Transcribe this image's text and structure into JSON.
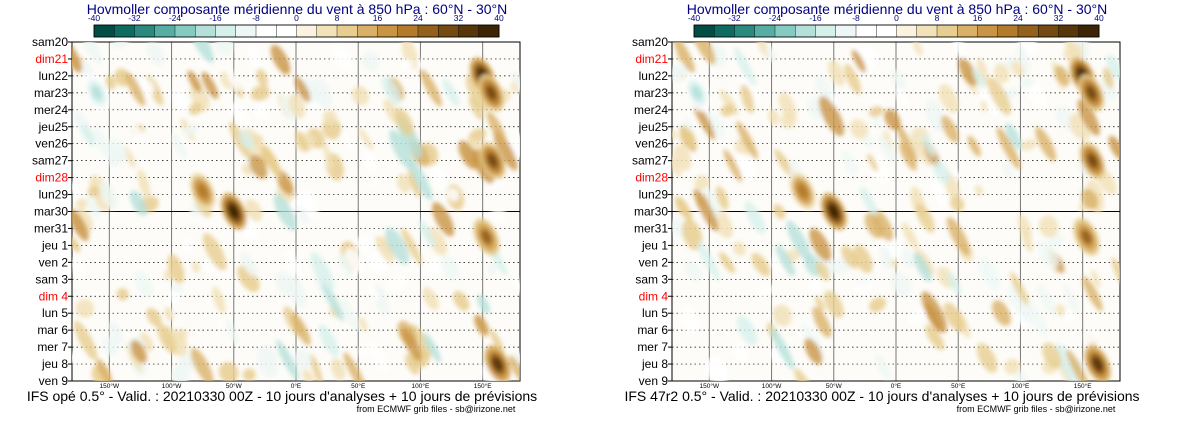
{
  "colors": {
    "title": "#000080",
    "weekday": "#000000",
    "weekend": "#ff0000",
    "frame": "#000000",
    "footer": "#000000"
  },
  "colorbar": {
    "ticks": [
      "-40",
      "-32",
      "-24",
      "-16",
      "-8",
      "0",
      "8",
      "16",
      "24",
      "32",
      "40"
    ],
    "colors": [
      "#014d43",
      "#0e6b62",
      "#2a8a80",
      "#56ada3",
      "#86cbc1",
      "#b5e0da",
      "#d6f0ec",
      "#eef7f5",
      "#ffffff",
      "#ffffff",
      "#fbf3df",
      "#f2e2b8",
      "#e7cd8f",
      "#d9b066",
      "#c99444",
      "#b27a2a",
      "#93611c",
      "#744a12",
      "#58360a",
      "#3d2405"
    ]
  },
  "panels": [
    {
      "title": "Hovmoller composante méridienne du vent à 850 hPa : 60°N - 30°N",
      "caption": "IFS opé 0.5° - Valid. : 20210330 00Z - 10 jours d'analyses + 10 jours de prévisions",
      "credit": "from ECMWF grib files - sb@irizone.net"
    },
    {
      "title": "Hovmoller composante méridienne du vent à 850 hPa : 60°N - 30°N",
      "caption": "IFS 47r2 0.5° - Valid. : 20210330 00Z - 10 jours d'analyses + 10 jours de prévisions",
      "credit": "from ECMWF grib files - sb@irizone.net"
    }
  ],
  "chart_data": {
    "type": "heatmap",
    "variable": "composante méridienne du vent à 850 hPa",
    "units": "color scale -40 to 40",
    "lat_band": "60°N - 30°N",
    "xlim_deg": [
      -180,
      180
    ],
    "x_ticks": [
      {
        "label": "150°W",
        "deg": -150
      },
      {
        "label": "100°W",
        "deg": -100
      },
      {
        "label": "50°W",
        "deg": -50
      },
      {
        "label": "0°E",
        "deg": 0
      },
      {
        "label": "50°E",
        "deg": 50
      },
      {
        "label": "100°E",
        "deg": 100
      },
      {
        "label": "150°E",
        "deg": 150
      }
    ],
    "y_labels": [
      {
        "label": "sam20",
        "weekend": false
      },
      {
        "label": "dim21",
        "weekend": true
      },
      {
        "label": "lun22",
        "weekend": false
      },
      {
        "label": "mar23",
        "weekend": false
      },
      {
        "label": "mer24",
        "weekend": false
      },
      {
        "label": "jeu25",
        "weekend": false
      },
      {
        "label": "ven26",
        "weekend": false
      },
      {
        "label": "sam27",
        "weekend": false
      },
      {
        "label": "dim28",
        "weekend": true
      },
      {
        "label": "lun29",
        "weekend": false
      },
      {
        "label": "mar30",
        "weekend": false
      },
      {
        "label": "mer31",
        "weekend": false
      },
      {
        "label": "jeu 1",
        "weekend": false
      },
      {
        "label": "ven 2",
        "weekend": false
      },
      {
        "label": "sam 3",
        "weekend": false
      },
      {
        "label": "dim 4",
        "weekend": true
      },
      {
        "label": "lun 5",
        "weekend": false
      },
      {
        "label": "mar 6",
        "weekend": false
      },
      {
        "label": "mer 7",
        "weekend": false
      },
      {
        "label": "jeu 8",
        "weekend": false
      },
      {
        "label": "ven 9",
        "weekend": false
      }
    ],
    "analysis_forecast_split": "mar30",
    "features": [
      {
        "lon": 150,
        "day": 2.0,
        "amp": 38,
        "note": "strong positive maximum"
      },
      {
        "lon": 157,
        "day": 3.0,
        "amp": 30,
        "note": "positive maximum"
      },
      {
        "lon": -50,
        "day": 10.0,
        "amp": 38,
        "note": "positive maximum"
      },
      {
        "lon": -75,
        "day": 8.8,
        "amp": 22,
        "note": "positive maximum"
      },
      {
        "lon": 158,
        "day": 7.0,
        "amp": 30,
        "note": "positive maximum"
      },
      {
        "lon": 153,
        "day": 11.5,
        "amp": 26,
        "note": "positive maximum"
      },
      {
        "lon": 162,
        "day": 19.0,
        "amp": 35,
        "note": "strong positive maximum"
      },
      {
        "lon": -160,
        "day": 3.0,
        "amp": -20,
        "note": "negative minimum"
      }
    ]
  }
}
